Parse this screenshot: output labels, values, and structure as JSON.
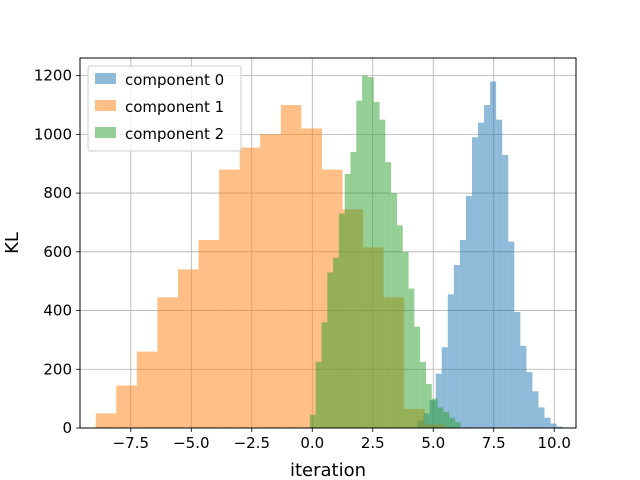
{
  "chart_data": {
    "type": "histogram",
    "xlabel": "iteration",
    "ylabel": "KL",
    "xlim": [
      -9.6,
      10.9
    ],
    "ylim": [
      0,
      1260
    ],
    "xticks": [
      -7.5,
      -5.0,
      -2.5,
      0.0,
      2.5,
      5.0,
      7.5,
      10.0
    ],
    "xtick_labels": [
      "−7.5",
      "−5.0",
      "−2.5",
      "0.0",
      "2.5",
      "5.0",
      "7.5",
      "10.0"
    ],
    "yticks": [
      0,
      200,
      400,
      600,
      800,
      1000,
      1200
    ],
    "ytick_labels": [
      "0",
      "200",
      "400",
      "600",
      "800",
      "1000",
      "1200"
    ],
    "grid": true,
    "legend_position": "top-left",
    "alpha": 0.5,
    "series": [
      {
        "name": "component 0",
        "color": "#1f77b4",
        "bin_start": 4.1,
        "bin_width": 0.25,
        "counts": [
          2,
          25,
          50,
          95,
          185,
          275,
          455,
          555,
          640,
          790,
          990,
          1040,
          1100,
          1180,
          1050,
          930,
          635,
          395,
          280,
          190,
          125,
          70,
          35,
          15,
          5,
          2
        ]
      },
      {
        "name": "component 1",
        "color": "#ff7f0e",
        "bin_start": -8.95,
        "bin_width": 0.85,
        "counts": [
          50,
          145,
          260,
          445,
          540,
          640,
          880,
          955,
          1000,
          1100,
          1020,
          880,
          745,
          615,
          445,
          65,
          12
        ]
      },
      {
        "name": "component 2",
        "color": "#2ca02c",
        "bin_start": -0.1,
        "bin_width": 0.24,
        "counts": [
          45,
          225,
          360,
          530,
          580,
          730,
          865,
          940,
          1115,
          1200,
          1195,
          1110,
          1050,
          905,
          800,
          690,
          600,
          475,
          345,
          225,
          150,
          100,
          70,
          55,
          35,
          20
        ]
      }
    ]
  }
}
